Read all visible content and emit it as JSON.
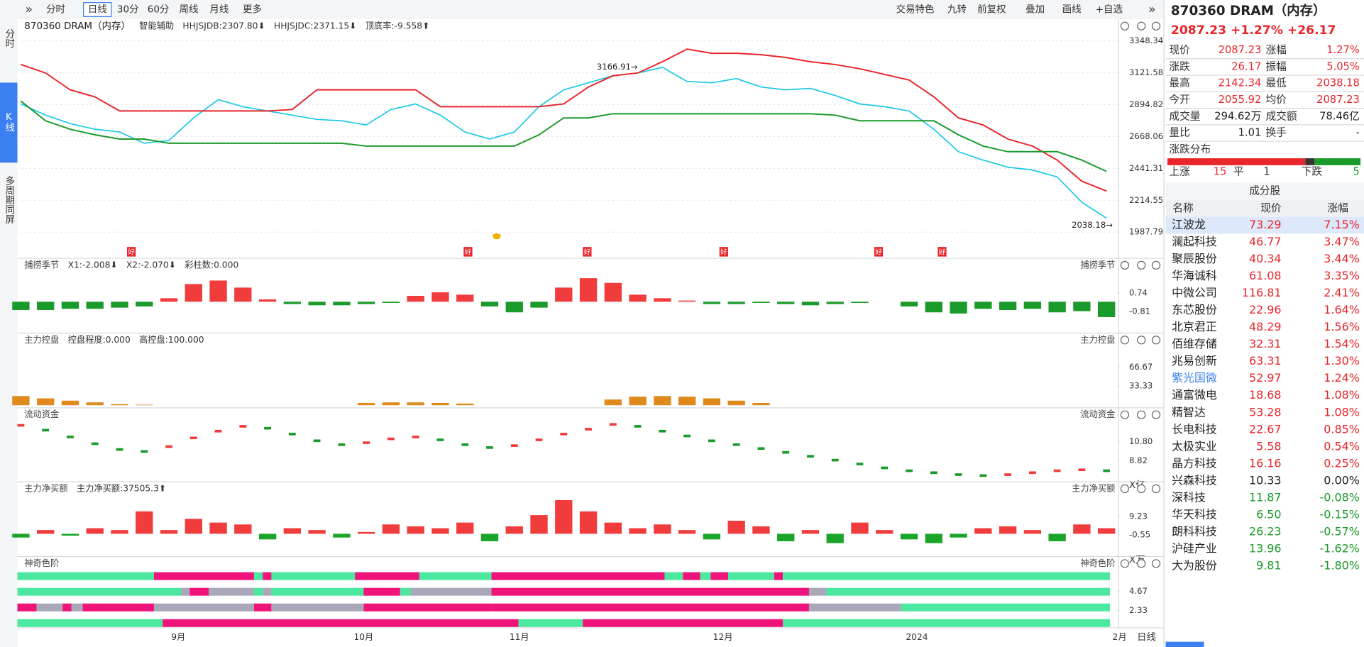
{
  "toolbar": {
    "left": [
      "分时",
      "日线",
      "30分",
      "60分",
      "周线",
      "月线",
      "更多"
    ],
    "right": [
      "交易特色",
      "九转",
      "前复权",
      "叠加",
      "画线",
      "+自选"
    ]
  },
  "sidebar": [
    "分时",
    "K线",
    "多周期同屏"
  ],
  "quote": {
    "title": "870360 DRAM（内存）",
    "price_line": "2087.23 +1.27% +26.17",
    "rows": [
      [
        "现价",
        "2087.23",
        "涨幅",
        "1.27%"
      ],
      [
        "涨跌",
        "26.17",
        "振幅",
        "5.05%"
      ],
      [
        "最高",
        "2142.34",
        "最低",
        "2038.18"
      ],
      [
        "今开",
        "2055.92",
        "均价",
        "2087.23"
      ],
      [
        "成交量",
        "294.62万",
        "成交额",
        "78.46亿"
      ],
      [
        "量比",
        "1.01",
        "换手",
        "-"
      ]
    ],
    "distribution": {
      "title": "涨跌分布",
      "up_label": "上涨",
      "up": 15,
      "flat_label": "平",
      "flat": 1,
      "down_label": "下跌",
      "down": 5
    }
  },
  "constituents": {
    "title": "成分股",
    "header": [
      "名称",
      "现价",
      "涨幅"
    ],
    "rows": [
      [
        "江波龙",
        "73.29",
        "7.15%"
      ],
      [
        "澜起科技",
        "46.77",
        "3.47%"
      ],
      [
        "聚辰股份",
        "40.34",
        "3.44%"
      ],
      [
        "华海诚科",
        "61.08",
        "3.35%"
      ],
      [
        "中微公司",
        "116.81",
        "2.41%"
      ],
      [
        "东芯股份",
        "22.96",
        "1.64%"
      ],
      [
        "北京君正",
        "48.29",
        "1.56%"
      ],
      [
        "佰维存储",
        "32.31",
        "1.54%"
      ],
      [
        "兆易创新",
        "63.31",
        "1.30%"
      ],
      [
        "紫光国微",
        "52.97",
        "1.24%"
      ],
      [
        "通富微电",
        "18.68",
        "1.08%"
      ],
      [
        "精智达",
        "53.28",
        "1.08%"
      ],
      [
        "长电科技",
        "22.67",
        "0.85%"
      ],
      [
        "太极实业",
        "5.58",
        "0.54%"
      ],
      [
        "晶方科技",
        "16.16",
        "0.25%"
      ],
      [
        "兴森科技",
        "10.33",
        "0.00%"
      ],
      [
        "深科技",
        "11.87",
        "-0.08%"
      ],
      [
        "华天科技",
        "6.50",
        "-0.15%"
      ],
      [
        "朗科科技",
        "26.23",
        "-0.57%"
      ],
      [
        "沪硅产业",
        "13.96",
        "-1.62%"
      ],
      [
        "大为股份",
        "9.81",
        "-1.80%"
      ]
    ]
  },
  "x_axis": {
    "labels": [
      "9月",
      "10月",
      "11月",
      "12月",
      "2024",
      "2月"
    ],
    "period_button": "日线"
  },
  "chart_data": [
    {
      "type": "line",
      "title": "870360 DRAM（内存）",
      "legend": [
        {
          "text": "智能辅助",
          "color": "#333333"
        },
        {
          "text": "HHJSJDB:2307.80⬇",
          "color": "#e08a1e"
        },
        {
          "text": "HHJSJDC:2371.15⬇",
          "color": "#e8262b"
        },
        {
          "text": "顶底率:-9.558⬆",
          "color": "#e8262b"
        }
      ],
      "ylim": [
        1907,
        3404
      ],
      "yticks": [
        3348.34,
        3121.58,
        2894.82,
        2668.06,
        2441.31,
        2214.55,
        1987.79
      ],
      "grid": true,
      "annotations": [
        "3166.91→",
        "2038.18→"
      ],
      "markers": [
        "好",
        "好",
        "好",
        "好",
        "好",
        "好"
      ],
      "series": [
        {
          "name": "收盘",
          "color": "#1ec8e6",
          "values": [
            2900,
            2820,
            2760,
            2720,
            2700,
            2620,
            2640,
            2800,
            2930,
            2880,
            2850,
            2820,
            2790,
            2780,
            2750,
            2860,
            2900,
            2820,
            2700,
            2650,
            2700,
            2880,
            3000,
            3050,
            3100,
            3120,
            3160,
            3060,
            3050,
            3080,
            3020,
            3000,
            3010,
            2960,
            2900,
            2880,
            2850,
            2720,
            2560,
            2500,
            2450,
            2430,
            2380,
            2200,
            2087
          ]
        },
        {
          "name": "上轨",
          "color": "#e8262b",
          "values": [
            3180,
            3120,
            3000,
            2950,
            2850,
            2850,
            2850,
            2850,
            2850,
            2850,
            2850,
            2860,
            3000,
            3000,
            3000,
            3000,
            3000,
            2880,
            2880,
            2880,
            2880,
            2880,
            2900,
            3020,
            3100,
            3120,
            3200,
            3290,
            3260,
            3260,
            3250,
            3230,
            3200,
            3180,
            3150,
            3110,
            3070,
            2950,
            2800,
            2750,
            2650,
            2600,
            2500,
            2350,
            2280
          ]
        },
        {
          "name": "下轨",
          "color": "#1a9a2a",
          "values": [
            2920,
            2780,
            2720,
            2680,
            2650,
            2650,
            2620,
            2620,
            2620,
            2620,
            2620,
            2620,
            2620,
            2620,
            2600,
            2600,
            2600,
            2600,
            2600,
            2600,
            2600,
            2680,
            2800,
            2800,
            2830,
            2830,
            2830,
            2830,
            2830,
            2830,
            2830,
            2830,
            2830,
            2820,
            2780,
            2780,
            2780,
            2780,
            2680,
            2600,
            2560,
            2560,
            2560,
            2500,
            2420
          ]
        }
      ]
    },
    {
      "type": "bar",
      "title": "捕捞季节",
      "legend": [
        {
          "text": "X1:-2.008⬇",
          "color": "#e08a1e"
        },
        {
          "text": "X2:-2.070⬇",
          "color": "#d020d0"
        },
        {
          "text": "彩柱数:0.000",
          "color": "#1a9a2a"
        }
      ],
      "ylim": [
        -2.29,
        2.36
      ],
      "yticks": [
        0.74,
        -0.81
      ],
      "grid": false,
      "series": [
        {
          "color": "#f03c3c",
          "negative_color": "#1a9a2a",
          "values": [
            -0.7,
            -0.7,
            -0.6,
            -0.6,
            -0.5,
            -0.4,
            0.3,
            1.5,
            1.8,
            1.2,
            0.2,
            -0.2,
            -0.3,
            -0.3,
            -0.2,
            -0.1,
            0.5,
            0.8,
            0.6,
            -0.4,
            -0.9,
            -0.5,
            1.2,
            2.0,
            1.6,
            0.6,
            0.3,
            0.1,
            -0.2,
            -0.2,
            -0.1,
            -0.2,
            -0.3,
            -0.2,
            -0.1,
            0.0,
            -0.4,
            -0.9,
            -1.0,
            -0.6,
            -0.7,
            -0.6,
            -0.9,
            -0.8,
            -1.3
          ]
        }
      ]
    },
    {
      "type": "bar",
      "title": "主力控盘",
      "legend": [
        {
          "text": "控盘程度:0.000",
          "color": "#e08a1e"
        },
        {
          "text": "高控盘:100.000",
          "color": "#e8262b"
        }
      ],
      "ylim": [
        0,
        103
      ],
      "yticks": [
        66.67,
        33.33
      ],
      "grid": false,
      "series": [
        {
          "color": "#e08a1e",
          "negative_color": "#e08a1e",
          "values": [
            16,
            12,
            8,
            5,
            2,
            1,
            0,
            0,
            0,
            0,
            0,
            0,
            0,
            0,
            4,
            5,
            5,
            4,
            3,
            0,
            0,
            0,
            0,
            0,
            10,
            15,
            16,
            15,
            12,
            8,
            4,
            0,
            0,
            0,
            0,
            0,
            0,
            0,
            0,
            0,
            0,
            0,
            0,
            0,
            0
          ]
        }
      ]
    },
    {
      "type": "dots",
      "title": "流动资金",
      "legend": [],
      "unit": "X亿",
      "ylim": [
        7.02,
        12.87
      ],
      "yticks": [
        {
          "value": 10.8,
          "label": "10.80"
        },
        8.82
      ],
      "grid": false,
      "series": [
        {
          "color": "#f03c3c",
          "negative_color": "#1a9a2a",
          "values": [
            12.5,
            12.0,
            11.3,
            10.6,
            10.0,
            9.8,
            10.3,
            11.2,
            11.9,
            12.4,
            12.2,
            11.6,
            10.9,
            10.5,
            10.7,
            11.1,
            11.3,
            11.0,
            10.5,
            10.2,
            10.4,
            11.0,
            11.6,
            12.1,
            12.6,
            12.4,
            11.9,
            11.4,
            10.9,
            10.5,
            10.1,
            9.7,
            9.3,
            8.9,
            8.5,
            8.1,
            7.8,
            7.6,
            7.4,
            7.3,
            7.4,
            7.6,
            7.8,
            7.9,
            7.8
          ]
        }
      ]
    },
    {
      "type": "bar",
      "title": "主力净买额",
      "legend": [
        {
          "text": "主力净买额:37505.3⬆",
          "color": "#e8262b"
        }
      ],
      "unit": "X万",
      "ylim": [
        -10.33,
        20.4
      ],
      "yticks": [
        9.23,
        -0.55
      ],
      "grid": false,
      "series": [
        {
          "color": "#f03c3c",
          "negative_color": "#1aa52a",
          "values": [
            -2,
            2,
            -1,
            3,
            2,
            12,
            2,
            8,
            6,
            5,
            -3,
            3,
            2,
            -2,
            1,
            5,
            4,
            3,
            6,
            -4,
            4,
            10,
            18,
            12,
            6,
            3,
            5,
            2,
            -3,
            7,
            4,
            -4,
            2,
            -5,
            6,
            2,
            -3,
            -5,
            -2,
            3,
            4,
            2,
            -4,
            5,
            3
          ]
        }
      ]
    },
    {
      "type": "bands",
      "title": "神奇色阶",
      "legend": [],
      "ylim": [
        0,
        7
      ],
      "yticks": [
        4.67,
        2.33
      ],
      "grid": false,
      "series": []
    }
  ]
}
